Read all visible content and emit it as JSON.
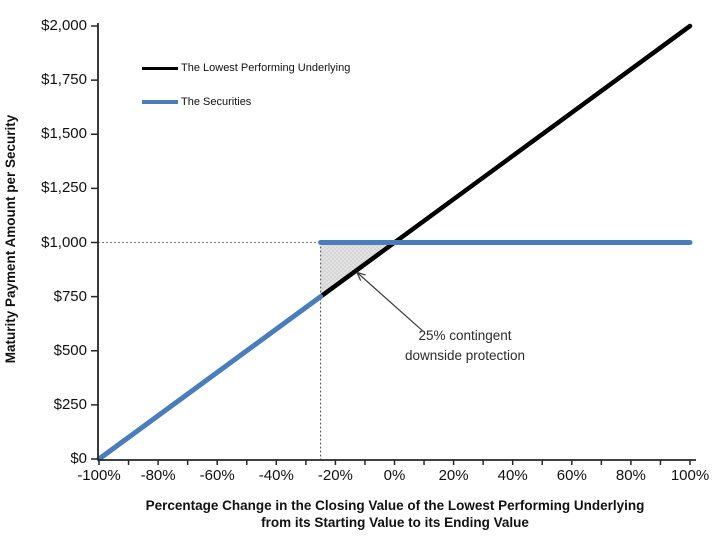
{
  "chart_data": {
    "type": "line",
    "title": "",
    "xlabel_line1": "Percentage Change in the Closing Value of the Lowest Performing Underlying",
    "xlabel_line2": "from its Starting Value to its Ending Value",
    "ylabel": "Maturity Payment Amount per Security",
    "xlim": [
      -100,
      100
    ],
    "ylim": [
      0,
      2000
    ],
    "grid": false,
    "legend_position": "top-left-inside",
    "x_ticks": [
      {
        "v": -100,
        "label": "-100%"
      },
      {
        "v": -80,
        "label": "-80%"
      },
      {
        "v": -60,
        "label": "-60%"
      },
      {
        "v": -40,
        "label": "-40%"
      },
      {
        "v": -20,
        "label": "-20%"
      },
      {
        "v": 0,
        "label": "0%"
      },
      {
        "v": 20,
        "label": "20%"
      },
      {
        "v": 40,
        "label": "40%"
      },
      {
        "v": 60,
        "label": "60%"
      },
      {
        "v": 80,
        "label": "80%"
      },
      {
        "v": 100,
        "label": "100%"
      }
    ],
    "x_minor_tick_step": 10,
    "y_ticks": [
      {
        "v": 0,
        "label": "$0"
      },
      {
        "v": 250,
        "label": "$250"
      },
      {
        "v": 500,
        "label": "$500"
      },
      {
        "v": 750,
        "label": "$750"
      },
      {
        "v": 1000,
        "label": "$1,000"
      },
      {
        "v": 1250,
        "label": "$1,250"
      },
      {
        "v": 1500,
        "label": "$1,500"
      },
      {
        "v": 1750,
        "label": "$1,750"
      },
      {
        "v": 2000,
        "label": "$2,000"
      }
    ],
    "series": [
      {
        "name": "The Lowest Performing Underlying",
        "color": "#000000",
        "width": 4.5,
        "segments": [
          [
            [
              -100,
              0
            ],
            [
              100,
              2000
            ]
          ]
        ]
      },
      {
        "name": "The Securities",
        "color": "#4a7ebb",
        "width": 5,
        "segments": [
          [
            [
              -100,
              0
            ],
            [
              -25,
              750
            ]
          ],
          [
            [
              -25,
              1000
            ],
            [
              100,
              1000
            ]
          ]
        ]
      }
    ],
    "reference_lines": [
      {
        "orient": "horizontal",
        "at": 1000,
        "from": -100,
        "to": -25,
        "color": "#7a7a7a"
      },
      {
        "orient": "vertical",
        "at": -25,
        "from": 0,
        "to": 1000,
        "color": "#4d4d4d"
      }
    ],
    "shaded_region": {
      "vertices": [
        [
          -25,
          1000
        ],
        [
          0,
          1000
        ],
        [
          -25,
          750
        ]
      ],
      "fill": "#d6d6d6",
      "meaning": "25% contingent downside protection zone"
    },
    "annotation": {
      "line1": "25% contingent",
      "line2": "downside protection",
      "arrow_from": [
        9.6,
        591
      ],
      "arrow_to": [
        -12.7,
        862
      ],
      "color": "#3a3a3a"
    }
  },
  "legend": {
    "items": [
      {
        "label": "The Lowest Performing Underlying",
        "color": "#000000"
      },
      {
        "label": "The Securities",
        "color": "#4a7ebb"
      }
    ]
  },
  "colors": {
    "underlying": "#000000",
    "securities": "#4a7ebb",
    "shade": "#d6d6d6",
    "axis": "#262626"
  }
}
